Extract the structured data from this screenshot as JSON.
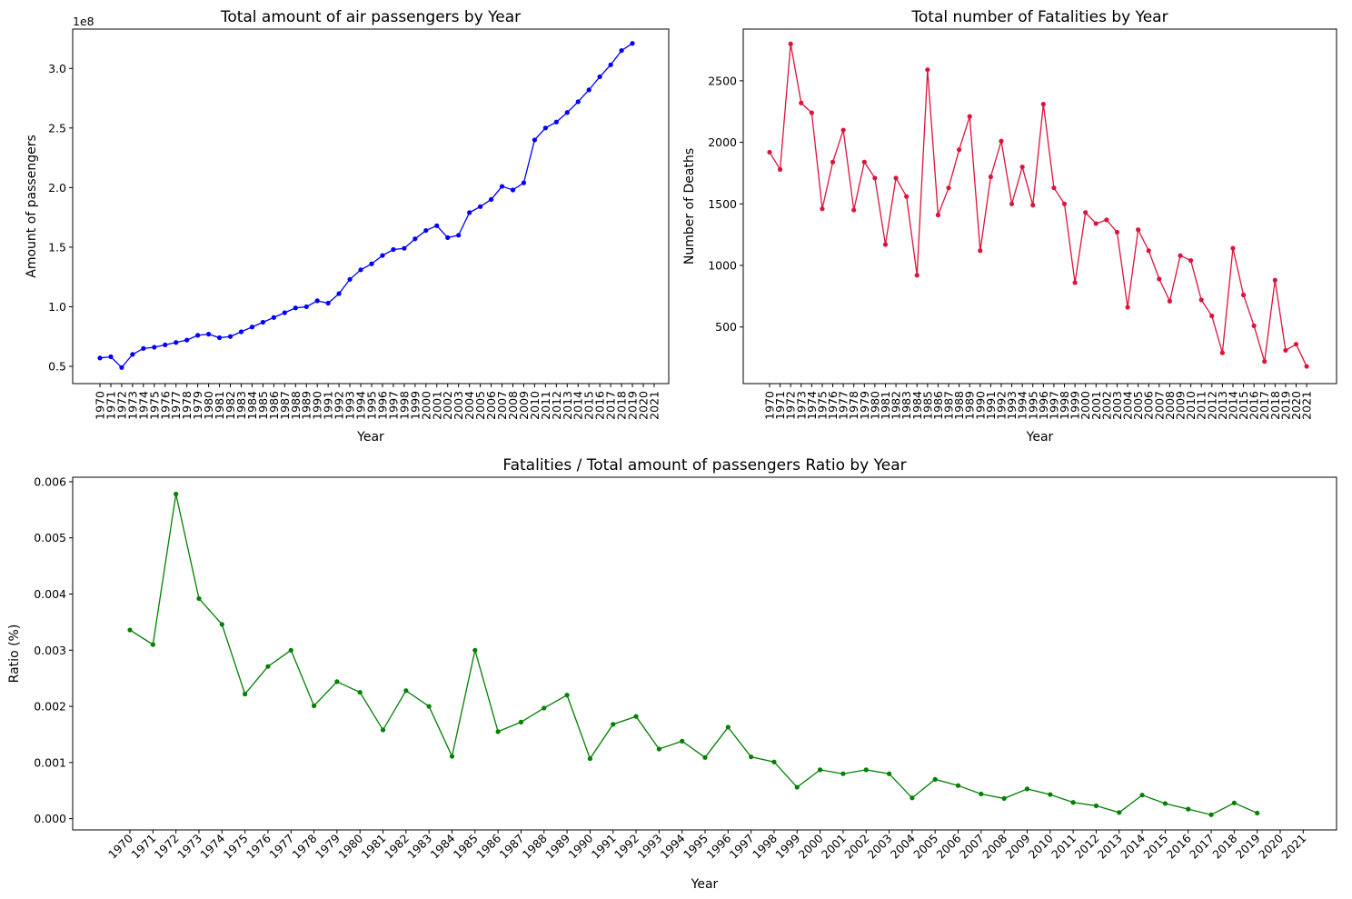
{
  "chart_data": [
    {
      "type": "line",
      "title": "Total amount of air passengers by Year",
      "xlabel": "Year",
      "ylabel": "Amount of passengers",
      "y_offset_text": "1e8",
      "color": "#0000ff",
      "x_ticks": [
        "1970",
        "1971",
        "1972",
        "1973",
        "1974",
        "1975",
        "1976",
        "1977",
        "1978",
        "1979",
        "1980",
        "1981",
        "1982",
        "1983",
        "1984",
        "1985",
        "1986",
        "1987",
        "1988",
        "1989",
        "1990",
        "1991",
        "1992",
        "1993",
        "1994",
        "1995",
        "1996",
        "1997",
        "1998",
        "1999",
        "2000",
        "2001",
        "2002",
        "2003",
        "2004",
        "2005",
        "2006",
        "2007",
        "2008",
        "2009",
        "2010",
        "2011",
        "2012",
        "2013",
        "2014",
        "2015",
        "2016",
        "2017",
        "2018",
        "2019",
        "2020",
        "2021"
      ],
      "y_ticks": [
        "0.5",
        "1.0",
        "1.5",
        "2.0",
        "2.5",
        "3.0"
      ],
      "y_tick_values": [
        0.5,
        1.0,
        1.5,
        2.0,
        2.5,
        3.0
      ],
      "ylim": [
        0.355,
        3.33
      ],
      "x": [
        "1970",
        "1971",
        "1972",
        "1973",
        "1974",
        "1975",
        "1976",
        "1977",
        "1978",
        "1979",
        "1980",
        "1981",
        "1982",
        "1983",
        "1984",
        "1985",
        "1986",
        "1987",
        "1988",
        "1989",
        "1990",
        "1991",
        "1992",
        "1993",
        "1994",
        "1995",
        "1996",
        "1997",
        "1998",
        "1999",
        "2000",
        "2001",
        "2002",
        "2003",
        "2004",
        "2005",
        "2006",
        "2007",
        "2008",
        "2009",
        "2010",
        "2011",
        "2012",
        "2013",
        "2014",
        "2015",
        "2016",
        "2017",
        "2018",
        "2019"
      ],
      "values": [
        0.57,
        0.58,
        0.49,
        0.6,
        0.65,
        0.66,
        0.68,
        0.7,
        0.72,
        0.76,
        0.77,
        0.74,
        0.75,
        0.79,
        0.83,
        0.87,
        0.91,
        0.95,
        0.99,
        1.0,
        1.05,
        1.03,
        1.11,
        1.23,
        1.31,
        1.36,
        1.43,
        1.48,
        1.49,
        1.57,
        1.64,
        1.68,
        1.58,
        1.6,
        1.79,
        1.84,
        1.9,
        2.01,
        1.98,
        2.04,
        2.4,
        2.5,
        2.55,
        2.63,
        2.72,
        2.82,
        2.93,
        3.03,
        3.15,
        3.21
      ]
    },
    {
      "type": "line",
      "title": "Total number of Fatalities by Year",
      "xlabel": "Year",
      "ylabel": "Number of Deaths",
      "color": "#dc143c",
      "x_ticks": [
        "1970",
        "1971",
        "1972",
        "1973",
        "1974",
        "1975",
        "1976",
        "1977",
        "1978",
        "1979",
        "1980",
        "1981",
        "1982",
        "1983",
        "1984",
        "1985",
        "1986",
        "1987",
        "1988",
        "1989",
        "1990",
        "1991",
        "1992",
        "1993",
        "1994",
        "1995",
        "1996",
        "1997",
        "1998",
        "1999",
        "2000",
        "2001",
        "2002",
        "2003",
        "2004",
        "2005",
        "2006",
        "2007",
        "2008",
        "2009",
        "2010",
        "2011",
        "2012",
        "2013",
        "2014",
        "2015",
        "2016",
        "2017",
        "2018",
        "2019",
        "2020",
        "2021"
      ],
      "y_ticks": [
        "500",
        "1000",
        "1500",
        "2000",
        "2500"
      ],
      "y_tick_values": [
        500,
        1000,
        1500,
        2000,
        2500
      ],
      "ylim": [
        40,
        2920
      ],
      "x": [
        "1970",
        "1971",
        "1972",
        "1973",
        "1974",
        "1975",
        "1976",
        "1977",
        "1978",
        "1979",
        "1980",
        "1981",
        "1982",
        "1983",
        "1984",
        "1985",
        "1986",
        "1987",
        "1988",
        "1989",
        "1990",
        "1991",
        "1992",
        "1993",
        "1994",
        "1995",
        "1996",
        "1997",
        "1998",
        "1999",
        "2000",
        "2001",
        "2002",
        "2003",
        "2004",
        "2005",
        "2006",
        "2007",
        "2008",
        "2009",
        "2010",
        "2011",
        "2012",
        "2013",
        "2014",
        "2015",
        "2016",
        "2017",
        "2018",
        "2019",
        "2020",
        "2021"
      ],
      "values": [
        1920,
        1780,
        2800,
        2320,
        2240,
        1460,
        1840,
        2100,
        1450,
        1840,
        1710,
        1170,
        1710,
        1560,
        920,
        2590,
        1410,
        1630,
        1940,
        2210,
        1120,
        1720,
        2010,
        1500,
        1800,
        1490,
        2310,
        1630,
        1500,
        860,
        1430,
        1340,
        1370,
        1270,
        660,
        1290,
        1120,
        890,
        710,
        1080,
        1040,
        720,
        590,
        290,
        1140,
        760,
        510,
        220,
        880,
        310,
        360,
        180
      ]
    },
    {
      "type": "line",
      "title": "Fatalities / Total amount of passengers Ratio by Year",
      "xlabel": "Year",
      "ylabel": "Ratio (%)",
      "color": "#008000",
      "x_ticks": [
        "1970",
        "1971",
        "1972",
        "1973",
        "1974",
        "1975",
        "1976",
        "1977",
        "1978",
        "1979",
        "1980",
        "1981",
        "1982",
        "1983",
        "1984",
        "1985",
        "1986",
        "1987",
        "1988",
        "1989",
        "1990",
        "1991",
        "1992",
        "1993",
        "1994",
        "1995",
        "1996",
        "1997",
        "1998",
        "1999",
        "2000",
        "2001",
        "2002",
        "2003",
        "2004",
        "2005",
        "2006",
        "2007",
        "2008",
        "2009",
        "2010",
        "2011",
        "2012",
        "2013",
        "2014",
        "2015",
        "2016",
        "2017",
        "2018",
        "2019",
        "2020",
        "2021"
      ],
      "y_ticks": [
        "0.000",
        "0.001",
        "0.002",
        "0.003",
        "0.004",
        "0.005",
        "0.006"
      ],
      "y_tick_values": [
        0.0,
        0.001,
        0.002,
        0.003,
        0.004,
        0.005,
        0.006
      ],
      "ylim": [
        -0.0002,
        0.00608
      ],
      "x": [
        "1970",
        "1971",
        "1972",
        "1973",
        "1974",
        "1975",
        "1976",
        "1977",
        "1978",
        "1979",
        "1980",
        "1981",
        "1982",
        "1983",
        "1984",
        "1985",
        "1986",
        "1987",
        "1988",
        "1989",
        "1990",
        "1991",
        "1992",
        "1993",
        "1994",
        "1995",
        "1996",
        "1997",
        "1998",
        "1999",
        "2000",
        "2001",
        "2002",
        "2003",
        "2004",
        "2005",
        "2006",
        "2007",
        "2008",
        "2009",
        "2010",
        "2011",
        "2012",
        "2013",
        "2014",
        "2015",
        "2016",
        "2017",
        "2018",
        "2019"
      ],
      "values": [
        0.00336,
        0.0031,
        0.00578,
        0.00392,
        0.00346,
        0.00222,
        0.00271,
        0.003,
        0.00201,
        0.00244,
        0.00225,
        0.00158,
        0.00228,
        0.002,
        0.00111,
        0.003,
        0.00155,
        0.00172,
        0.00197,
        0.0022,
        0.00107,
        0.00168,
        0.00182,
        0.00124,
        0.00138,
        0.00109,
        0.00163,
        0.0011,
        0.00101,
        0.00056,
        0.00087,
        0.0008,
        0.00087,
        0.0008,
        0.00037,
        0.0007,
        0.00059,
        0.00044,
        0.00036,
        0.00053,
        0.00043,
        0.00029,
        0.00023,
        0.00011,
        0.00042,
        0.00027,
        0.00017,
        7e-05,
        0.00028,
        0.0001
      ]
    }
  ]
}
